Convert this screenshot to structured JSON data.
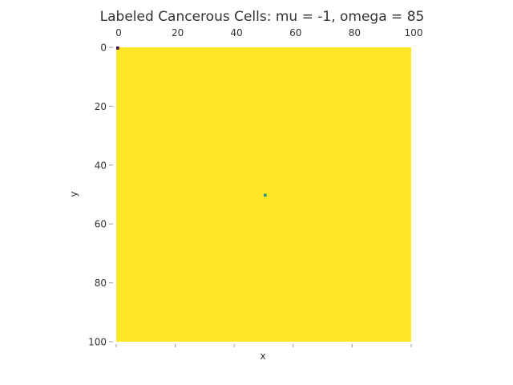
{
  "chart_data": {
    "type": "heatmap",
    "title": "Labeled Cancerous Cells: mu = -1, omega = 85",
    "xlabel": "x",
    "ylabel": "y",
    "xlim": [
      0,
      100
    ],
    "ylim": [
      0,
      100
    ],
    "y_inverted": true,
    "x_ticks": [
      0,
      20,
      40,
      60,
      80,
      100
    ],
    "x_tick_labels": [
      "0",
      "20",
      "40",
      "60",
      "80",
      "100"
    ],
    "y_ticks": [
      0,
      20,
      40,
      60,
      80,
      100
    ],
    "y_tick_labels": [
      "0",
      "20",
      "40",
      "60",
      "80",
      "100"
    ],
    "grid": false,
    "background_value_color": "#fde725",
    "cells": [
      {
        "x": 50,
        "y": 50,
        "color": "#21918c"
      },
      {
        "x": 0,
        "y": 0,
        "color": "#440154"
      }
    ],
    "colors": {
      "background": "#fde725",
      "marked_cell": "#21918c",
      "corner_cell": "#440154",
      "text": "#333333",
      "text_outline": "#ffffff",
      "tick": "#999999"
    }
  }
}
